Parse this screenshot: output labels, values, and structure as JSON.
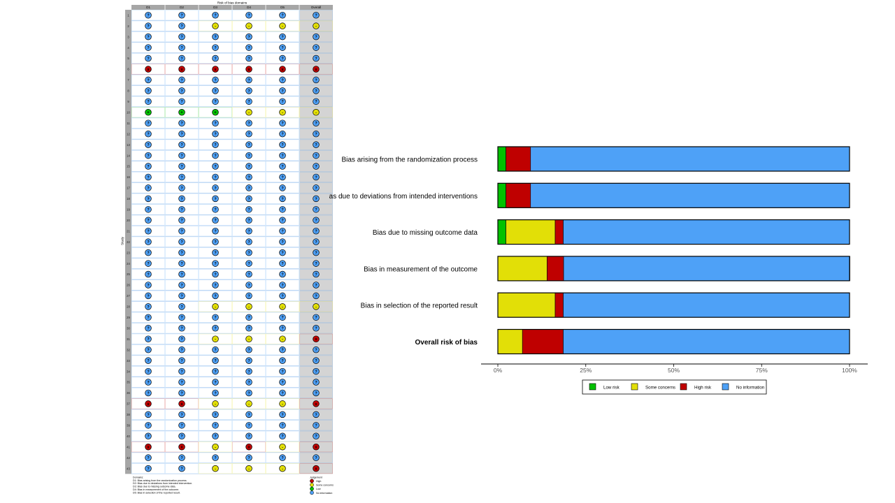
{
  "colors": {
    "low": "#02C100",
    "some": "#E2DF07",
    "high": "#BF0000",
    "none": "#4EA1F7"
  },
  "chart_data": [
    {
      "type": "table",
      "title": "Risk of bias domains",
      "ylabel": "Study",
      "columns": [
        "D1",
        "D2",
        "D3",
        "D4",
        "D5",
        "Overall"
      ],
      "studies": [
        "1",
        "2",
        "3",
        "4",
        "5",
        "6",
        "7",
        "8",
        "9",
        "10",
        "11",
        "12",
        "13",
        "14",
        "15",
        "16",
        "17",
        "18",
        "19",
        "20",
        "21",
        "22",
        "23",
        "24",
        "25",
        "26",
        "27",
        "28",
        "29",
        "30",
        "31",
        "32",
        "33",
        "34",
        "35",
        "36",
        "37",
        "38",
        "39",
        "40",
        "41",
        "42",
        "43"
      ],
      "judgements": [
        [
          "N",
          "N",
          "N",
          "N",
          "N",
          "N"
        ],
        [
          "N",
          "N",
          "S",
          "S",
          "S",
          "S"
        ],
        [
          "N",
          "N",
          "N",
          "N",
          "N",
          "N"
        ],
        [
          "N",
          "N",
          "N",
          "N",
          "N",
          "N"
        ],
        [
          "N",
          "N",
          "N",
          "N",
          "N",
          "N"
        ],
        [
          "H",
          "H",
          "H",
          "H",
          "H",
          "H"
        ],
        [
          "N",
          "N",
          "N",
          "N",
          "N",
          "N"
        ],
        [
          "N",
          "N",
          "N",
          "N",
          "N",
          "N"
        ],
        [
          "N",
          "N",
          "N",
          "N",
          "N",
          "N"
        ],
        [
          "L",
          "L",
          "L",
          "S",
          "S",
          "S"
        ],
        [
          "N",
          "N",
          "N",
          "N",
          "N",
          "N"
        ],
        [
          "N",
          "N",
          "N",
          "N",
          "N",
          "N"
        ],
        [
          "N",
          "N",
          "N",
          "N",
          "N",
          "N"
        ],
        [
          "N",
          "N",
          "N",
          "N",
          "N",
          "N"
        ],
        [
          "N",
          "N",
          "N",
          "N",
          "N",
          "N"
        ],
        [
          "N",
          "N",
          "N",
          "N",
          "N",
          "N"
        ],
        [
          "N",
          "N",
          "N",
          "N",
          "N",
          "N"
        ],
        [
          "N",
          "N",
          "N",
          "N",
          "N",
          "N"
        ],
        [
          "N",
          "N",
          "N",
          "N",
          "N",
          "N"
        ],
        [
          "N",
          "N",
          "N",
          "N",
          "N",
          "N"
        ],
        [
          "N",
          "N",
          "N",
          "N",
          "N",
          "N"
        ],
        [
          "N",
          "N",
          "N",
          "N",
          "N",
          "N"
        ],
        [
          "N",
          "N",
          "N",
          "N",
          "N",
          "N"
        ],
        [
          "N",
          "N",
          "N",
          "N",
          "N",
          "N"
        ],
        [
          "N",
          "N",
          "N",
          "N",
          "N",
          "N"
        ],
        [
          "N",
          "N",
          "N",
          "N",
          "N",
          "N"
        ],
        [
          "N",
          "N",
          "N",
          "N",
          "N",
          "N"
        ],
        [
          "N",
          "N",
          "S",
          "S",
          "S",
          "S"
        ],
        [
          "N",
          "N",
          "N",
          "N",
          "N",
          "N"
        ],
        [
          "N",
          "N",
          "N",
          "N",
          "N",
          "N"
        ],
        [
          "N",
          "N",
          "S",
          "S",
          "S",
          "H"
        ],
        [
          "N",
          "N",
          "N",
          "N",
          "N",
          "N"
        ],
        [
          "N",
          "N",
          "N",
          "N",
          "N",
          "N"
        ],
        [
          "N",
          "N",
          "N",
          "N",
          "N",
          "N"
        ],
        [
          "N",
          "N",
          "N",
          "N",
          "N",
          "N"
        ],
        [
          "N",
          "N",
          "N",
          "N",
          "N",
          "N"
        ],
        [
          "H",
          "H",
          "S",
          "S",
          "S",
          "H"
        ],
        [
          "N",
          "N",
          "N",
          "N",
          "N",
          "N"
        ],
        [
          "N",
          "N",
          "N",
          "N",
          "N",
          "N"
        ],
        [
          "N",
          "N",
          "N",
          "N",
          "N",
          "N"
        ],
        [
          "H",
          "H",
          "S",
          "H",
          "S",
          "H"
        ],
        [
          "N",
          "N",
          "N",
          "N",
          "N",
          "N"
        ],
        [
          "N",
          "N",
          "S",
          "S",
          "S",
          "H"
        ]
      ],
      "symbols": {
        "L": "+",
        "S": "-",
        "H": "x",
        "N": "?"
      },
      "domains_title": "Domains:",
      "domains": [
        "D1: Bias arising from the randomization process.",
        "D2: Bias due to deviations from intended intervention.",
        "D3: Bias due to missing outcome data.",
        "D4: Bias in measurement of the outcome.",
        "D5: Bias in selection of the reported result."
      ],
      "judgement_title": "Judgement",
      "judgement_legend": [
        {
          "key": "H",
          "label": "High"
        },
        {
          "key": "S",
          "label": "Some concerns"
        },
        {
          "key": "L",
          "label": "Low"
        },
        {
          "key": "N",
          "label": "No information"
        }
      ]
    },
    {
      "type": "bar",
      "stacked": true,
      "orientation": "horizontal",
      "categories": [
        "Bias arising from the randomization process",
        "Bias due to deviations from intended interventions",
        "Bias due to missing outcome data",
        "Bias in measurement of the outcome",
        "Bias in selection of the reported result",
        "Overall risk of bias"
      ],
      "series": [
        {
          "name": "Low risk",
          "key": "L",
          "values": [
            2.3,
            2.3,
            2.3,
            0,
            0,
            0
          ]
        },
        {
          "name": "Some concerns",
          "key": "S",
          "values": [
            0,
            0,
            14.0,
            14.0,
            16.3,
            7.0
          ]
        },
        {
          "name": "High risk",
          "key": "H",
          "values": [
            7.0,
            7.0,
            2.3,
            4.7,
            2.3,
            11.6
          ]
        },
        {
          "name": "No information",
          "key": "N",
          "values": [
            90.7,
            90.7,
            81.4,
            81.4,
            81.4,
            81.4
          ]
        }
      ],
      "xlim": [
        0,
        100
      ],
      "xticks": [
        "0%",
        "25%",
        "50%",
        "75%",
        "100%"
      ],
      "legend_position": "bottom"
    }
  ]
}
